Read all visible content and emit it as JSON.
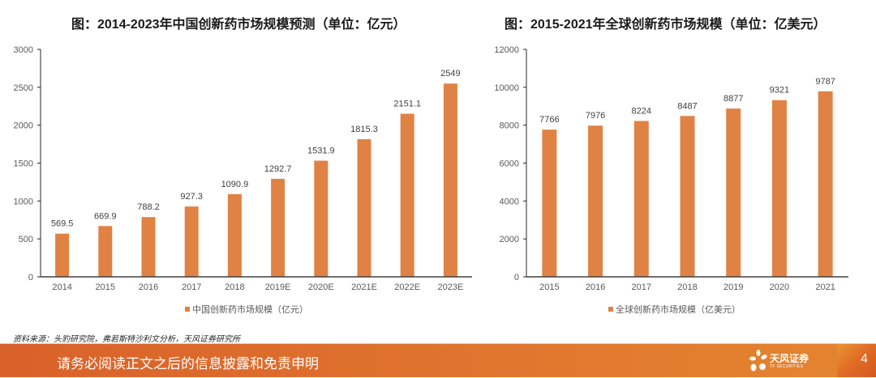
{
  "chart_data": [
    {
      "type": "bar",
      "title": "图：2014-2023年中国创新药市场规模预测（单位：亿元）",
      "categories": [
        "2014",
        "2015",
        "2016",
        "2017",
        "2018",
        "2019E",
        "2020E",
        "2021E",
        "2022E",
        "2023E"
      ],
      "series": [
        {
          "name": "中国创新药市场规模（亿元）",
          "values": [
            569.5,
            669.9,
            788.2,
            927.3,
            1090.9,
            1292.7,
            1531.9,
            1815.3,
            2151.1,
            2549
          ]
        }
      ],
      "value_labels": [
        "569.5",
        "669.9",
        "788.2",
        "927.3",
        "1090.9",
        "1292.7",
        "1531.9",
        "1815.3",
        "2151.1",
        "2549"
      ],
      "yticks": [
        "0",
        "500",
        "1000",
        "1500",
        "2000",
        "2500",
        "3000"
      ],
      "ylim": [
        0,
        3000
      ],
      "xlabel": "",
      "ylabel": "",
      "grid": false,
      "legend": "bottom",
      "color": "#e08244"
    },
    {
      "type": "bar",
      "title": "图：2015-2021年全球创新药市场规模（单位：亿美元）",
      "categories": [
        "2015",
        "2016",
        "2017",
        "2018",
        "2019",
        "2020",
        "2021"
      ],
      "series": [
        {
          "name": "全球创新药市场规模（亿美元）",
          "values": [
            7766,
            7976,
            8224,
            8487,
            8877,
            9321,
            9787
          ]
        }
      ],
      "value_labels": [
        "7766",
        "7976",
        "8224",
        "8487",
        "8877",
        "9321",
        "9787"
      ],
      "yticks": [
        "0",
        "2000",
        "4000",
        "6000",
        "8000",
        "10000",
        "12000"
      ],
      "ylim": [
        0,
        12000
      ],
      "xlabel": "",
      "ylabel": "",
      "grid": false,
      "legend": "bottom",
      "color": "#e08244"
    }
  ],
  "source": "资料来源：头豹研究院，弗若斯特沙利文分析，天风证券研究所",
  "footer": {
    "disclaimer": "请务必阅读正文之后的信息披露和免责申明",
    "brand_name": "天风证券",
    "brand_sub": "TF SECURITIES",
    "page_number": "4",
    "logo_icon": "flower-logo-icon"
  }
}
